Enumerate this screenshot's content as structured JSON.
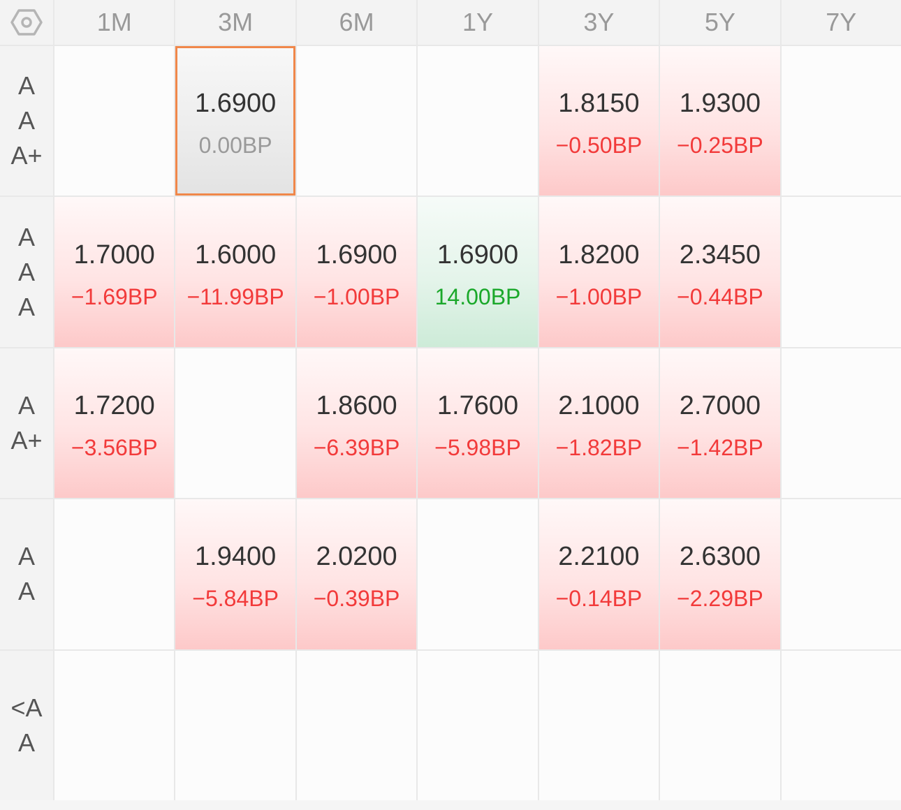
{
  "columns": [
    "1M",
    "3M",
    "6M",
    "1Y",
    "3Y",
    "5Y",
    "7Y"
  ],
  "rows": [
    {
      "label": "AAA+",
      "cells": [
        null,
        {
          "rate": "1.6900",
          "bp": "0.00BP",
          "dir": "zero",
          "selected": true
        },
        null,
        null,
        {
          "rate": "1.8150",
          "bp": "−0.50BP",
          "dir": "neg"
        },
        {
          "rate": "1.9300",
          "bp": "−0.25BP",
          "dir": "neg"
        },
        null
      ]
    },
    {
      "label": "AAA",
      "cells": [
        {
          "rate": "1.7000",
          "bp": "−1.69BP",
          "dir": "neg"
        },
        {
          "rate": "1.6000",
          "bp": "−11.99BP",
          "dir": "neg"
        },
        {
          "rate": "1.6900",
          "bp": "−1.00BP",
          "dir": "neg"
        },
        {
          "rate": "1.6900",
          "bp": "14.00BP",
          "dir": "pos"
        },
        {
          "rate": "1.8200",
          "bp": "−1.00BP",
          "dir": "neg"
        },
        {
          "rate": "2.3450",
          "bp": "−0.44BP",
          "dir": "neg"
        },
        null
      ]
    },
    {
      "label": "AA+",
      "cells": [
        {
          "rate": "1.7200",
          "bp": "−3.56BP",
          "dir": "neg"
        },
        null,
        {
          "rate": "1.8600",
          "bp": "−6.39BP",
          "dir": "neg"
        },
        {
          "rate": "1.7600",
          "bp": "−5.98BP",
          "dir": "neg"
        },
        {
          "rate": "2.1000",
          "bp": "−1.82BP",
          "dir": "neg"
        },
        {
          "rate": "2.7000",
          "bp": "−1.42BP",
          "dir": "neg"
        },
        null
      ]
    },
    {
      "label": "AA",
      "cells": [
        null,
        {
          "rate": "1.9400",
          "bp": "−5.84BP",
          "dir": "neg"
        },
        {
          "rate": "2.0200",
          "bp": "−0.39BP",
          "dir": "neg"
        },
        null,
        {
          "rate": "2.2100",
          "bp": "−0.14BP",
          "dir": "neg"
        },
        {
          "rate": "2.6300",
          "bp": "−2.29BP",
          "dir": "neg"
        },
        null
      ]
    },
    {
      "label": "<AA",
      "cells": [
        null,
        null,
        null,
        null,
        null,
        null,
        null
      ]
    }
  ],
  "colors": {
    "negative_text": "#f23a3a",
    "positive_text": "#1aa82a",
    "zero_text": "#9a9a9a",
    "selection_border": "#f0874a"
  },
  "icons": {
    "corner": "hexagon-nut-settings-icon"
  }
}
